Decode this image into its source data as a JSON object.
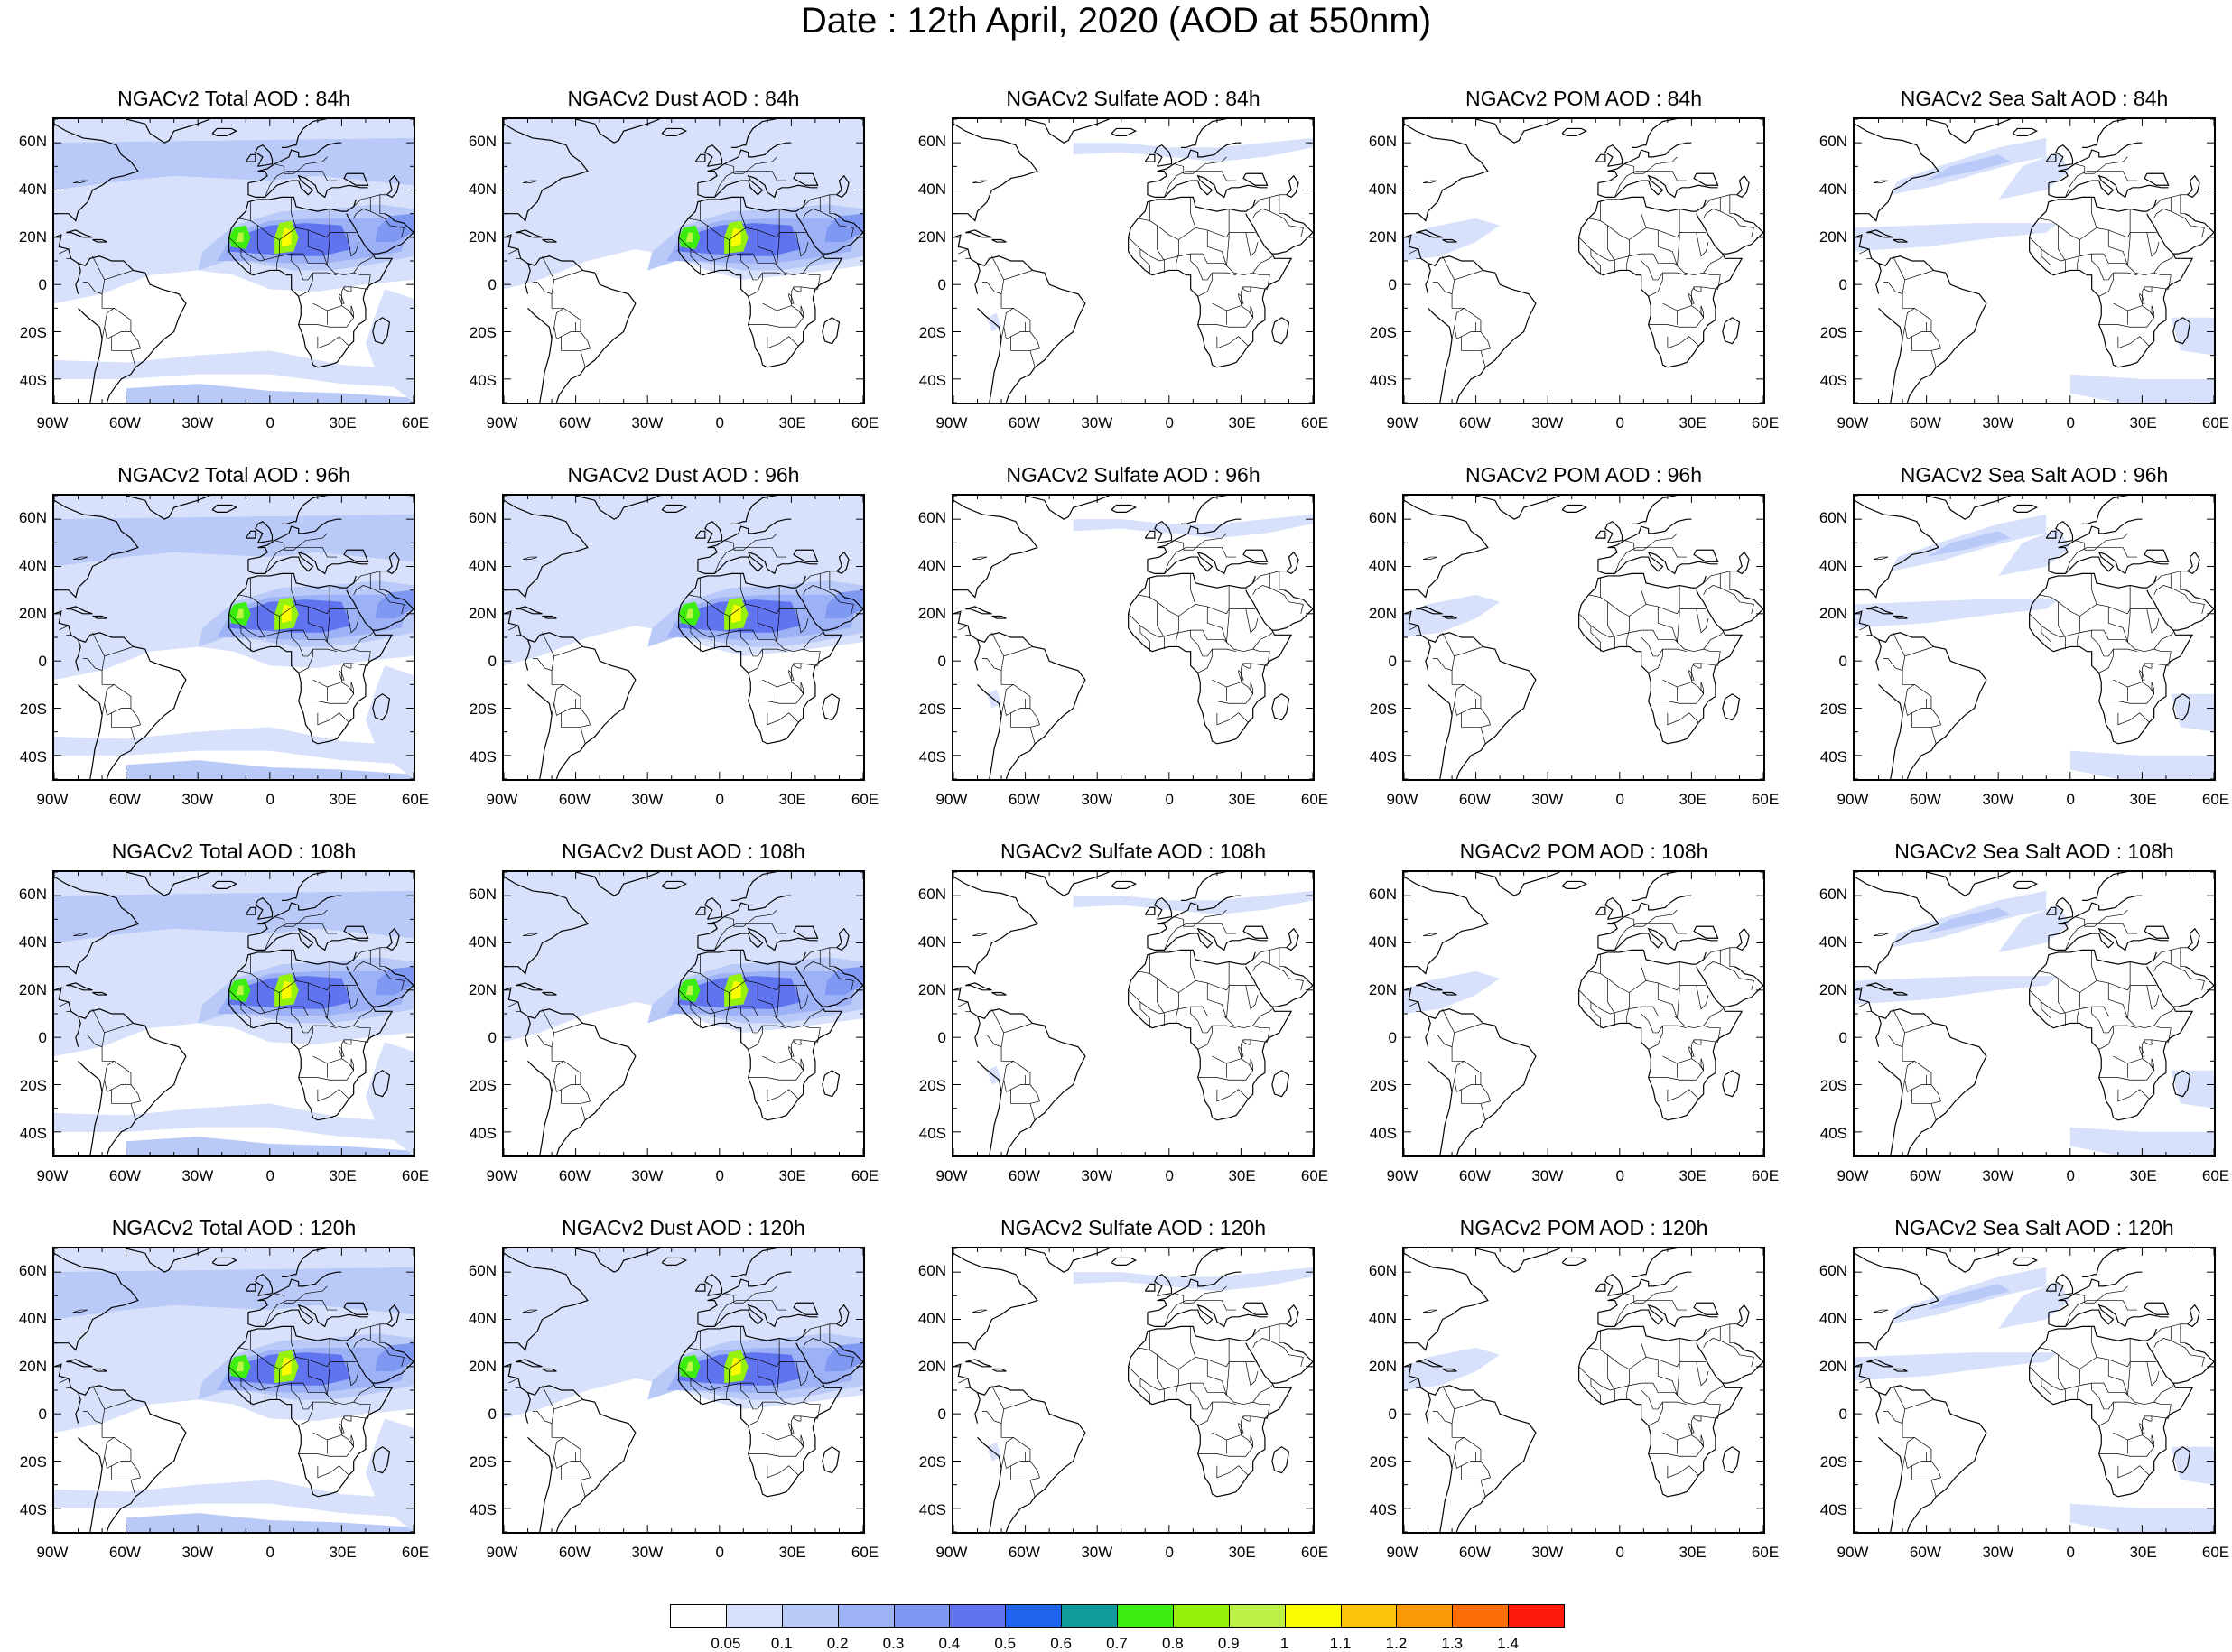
{
  "title": "Date : 12th April, 2020 (AOD at 550nm)",
  "rows": [
    "84h",
    "96h",
    "108h",
    "120h"
  ],
  "panel_titles": [
    [
      "NGACv2 Total AOD : 84h",
      "NGACv2 Dust AOD : 84h",
      "NGACv2 Sulfate AOD : 84h",
      "NGACv2 POM AOD : 84h",
      "NGACv2 Sea Salt AOD : 84h"
    ],
    [
      "NGACv2 Total AOD : 96h",
      "NGACv2 Dust AOD : 96h",
      "NGACv2 Sulfate AOD : 96h",
      "NGACv2 POM AOD : 96h",
      "NGACv2 Sea Salt AOD : 96h"
    ],
    [
      "NGACv2 Total AOD : 108h",
      "NGACv2 Dust AOD : 108h",
      "NGACv2 Sulfate AOD : 108h",
      "NGACv2 POM AOD : 108h",
      "NGACv2 Sea Salt AOD : 108h"
    ],
    [
      "NGACv2 Total AOD : 120h",
      "NGACv2 Dust AOD : 120h",
      "NGACv2 Sulfate AOD : 120h",
      "NGACv2 POM AOD : 120h",
      "NGACv2 Sea Salt  AOD : 120h"
    ]
  ],
  "map_extent": {
    "lon": [
      -90,
      60
    ],
    "lat": [
      -50,
      70
    ]
  },
  "lat_ticks": [
    60,
    40,
    20,
    0,
    -20,
    -40
  ],
  "lat_labels": [
    "60N",
    "40N",
    "20N",
    "0",
    "20S",
    "40S"
  ],
  "lon_ticks": [
    -90,
    -60,
    -30,
    0,
    30,
    60
  ],
  "lon_labels": [
    "90W",
    "60W",
    "30W",
    "0",
    "30E",
    "60E"
  ],
  "colorbar": {
    "colors": [
      "#ffffff",
      "#d7e1fb",
      "#b9c9f8",
      "#9cb1f6",
      "#7f99f3",
      "#6074ef",
      "#1f63ef",
      "#119a9a",
      "#3ced0f",
      "#95f20c",
      "#bff246",
      "#fcfc01",
      "#fcc40b",
      "#fc9a06",
      "#fc6f07",
      "#fc1a0a"
    ],
    "labels": [
      "0.05",
      "0.1",
      "0.2",
      "0.3",
      "0.4",
      "0.5",
      "0.6",
      "0.7",
      "0.8",
      "0.9",
      "1",
      "1.1",
      "1.2",
      "1.3",
      "1.4"
    ]
  }
}
